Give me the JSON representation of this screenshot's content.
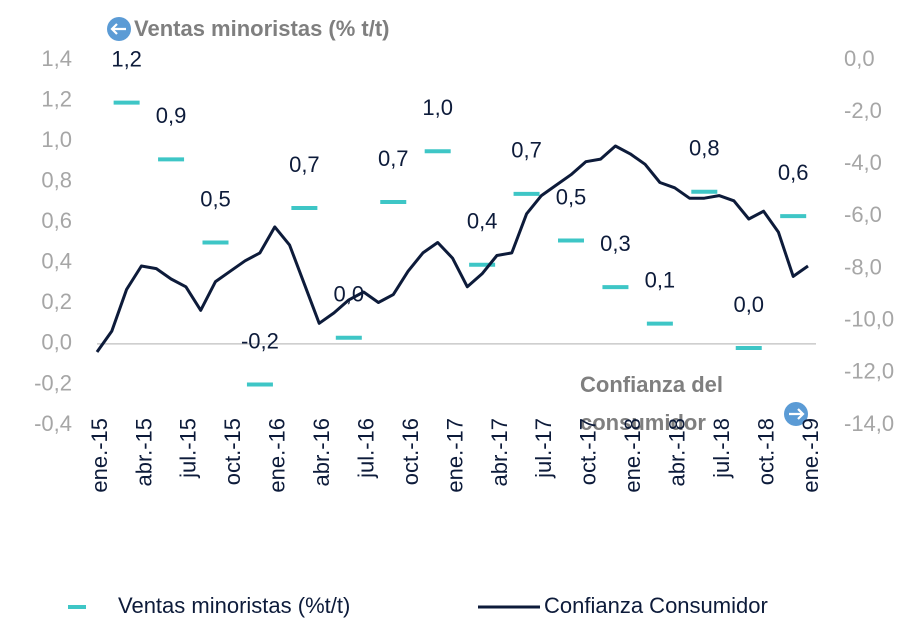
{
  "chart_data": {
    "type": "line",
    "annotations": [
      "Ventas minoristas (% t/t)",
      "Confianza del",
      "consumidor"
    ],
    "categories": [
      "ene.-15",
      null,
      null,
      "abr.-15",
      null,
      null,
      "jul.-15",
      null,
      null,
      "oct.-15",
      null,
      null,
      "ene.-16",
      null,
      null,
      "abr.-16",
      null,
      null,
      "jul.-16",
      null,
      null,
      "oct.-16",
      null,
      null,
      "ene.-17",
      null,
      null,
      "abr.-17",
      null,
      null,
      "jul.-17",
      null,
      null,
      "oct.-17",
      null,
      null,
      "ene.-18",
      null,
      null,
      "abr.-18",
      null,
      null,
      "jul.-18",
      null,
      null,
      "oct.-18",
      null,
      null,
      "ene.-19"
    ],
    "series": [
      {
        "name": "Ventas minoristas (%t/t)",
        "color": "#3ec6c6",
        "style": "dash",
        "values": [
          null,
          null,
          1.19,
          null,
          null,
          0.91,
          null,
          null,
          0.5,
          null,
          null,
          -0.2,
          null,
          null,
          0.67,
          null,
          null,
          0.03,
          null,
          null,
          0.7,
          null,
          null,
          0.95,
          null,
          null,
          0.39,
          null,
          null,
          0.74,
          null,
          null,
          0.51,
          null,
          null,
          0.28,
          null,
          null,
          0.1,
          null,
          null,
          0.75,
          null,
          null,
          -0.02,
          null,
          null,
          0.63,
          null
        ],
        "value_labels": [
          null,
          null,
          "1,2",
          null,
          null,
          "0,9",
          null,
          null,
          "0,5",
          null,
          null,
          "-0,2",
          null,
          null,
          "0,7",
          null,
          null,
          "0,0",
          null,
          null,
          "0,7",
          null,
          null,
          "1,0",
          null,
          null,
          "0,4",
          null,
          null,
          "0,7",
          null,
          null,
          "0,5",
          null,
          null,
          "0,3",
          null,
          null,
          "0,1",
          null,
          null,
          "0,8",
          null,
          null,
          "0,0",
          null,
          null,
          "0,6",
          null
        ]
      },
      {
        "name": "Confianza Consumidor",
        "color": "#0d1b3a",
        "style": "line",
        "axis": "y2",
        "values": [
          -11.2,
          -10.4,
          -8.8,
          -7.9,
          -8.0,
          -8.4,
          -8.7,
          -9.6,
          -8.5,
          -8.1,
          -7.7,
          -7.4,
          -6.4,
          -7.1,
          -8.6,
          -10.1,
          -9.7,
          -9.2,
          -8.9,
          -9.3,
          -9.0,
          -8.1,
          -7.4,
          -7.0,
          -7.6,
          -8.7,
          -8.2,
          -7.5,
          -7.4,
          -5.9,
          -5.2,
          -4.8,
          -4.4,
          -3.9,
          -3.8,
          -3.3,
          -3.6,
          -4.0,
          -4.7,
          -4.9,
          -5.3,
          -5.3,
          -5.2,
          -5.4,
          -6.1,
          -5.8,
          -6.6,
          -8.3,
          -7.9
        ]
      }
    ],
    "ylim": [
      -0.4,
      1.4
    ],
    "yticks": [
      {
        "value": -0.4,
        "label": "-0,4"
      },
      {
        "value": -0.2,
        "label": "-0,2"
      },
      {
        "value": 0,
        "label": "0,0"
      },
      {
        "value": 0.2,
        "label": "0,2"
      },
      {
        "value": 0.4,
        "label": "0,4"
      },
      {
        "value": 0.6,
        "label": "0,6"
      },
      {
        "value": 0.8,
        "label": "0,8"
      },
      {
        "value": 1.0,
        "label": "1,0"
      },
      {
        "value": 1.2,
        "label": "1,2"
      },
      {
        "value": 1.4,
        "label": "1,4"
      }
    ],
    "y2lim": [
      -14,
      0
    ],
    "y2ticks": [
      {
        "value": -14,
        "label": "-14,0"
      },
      {
        "value": -12,
        "label": "-12,0"
      },
      {
        "value": -10,
        "label": "-10,0"
      },
      {
        "value": -8,
        "label": "-8,0"
      },
      {
        "value": -6,
        "label": "-6,0"
      },
      {
        "value": -4,
        "label": "-4,0"
      },
      {
        "value": -2,
        "label": "-2,0"
      },
      {
        "value": 0,
        "label": "0,0"
      }
    ],
    "grid": false,
    "legend": "bottom"
  }
}
